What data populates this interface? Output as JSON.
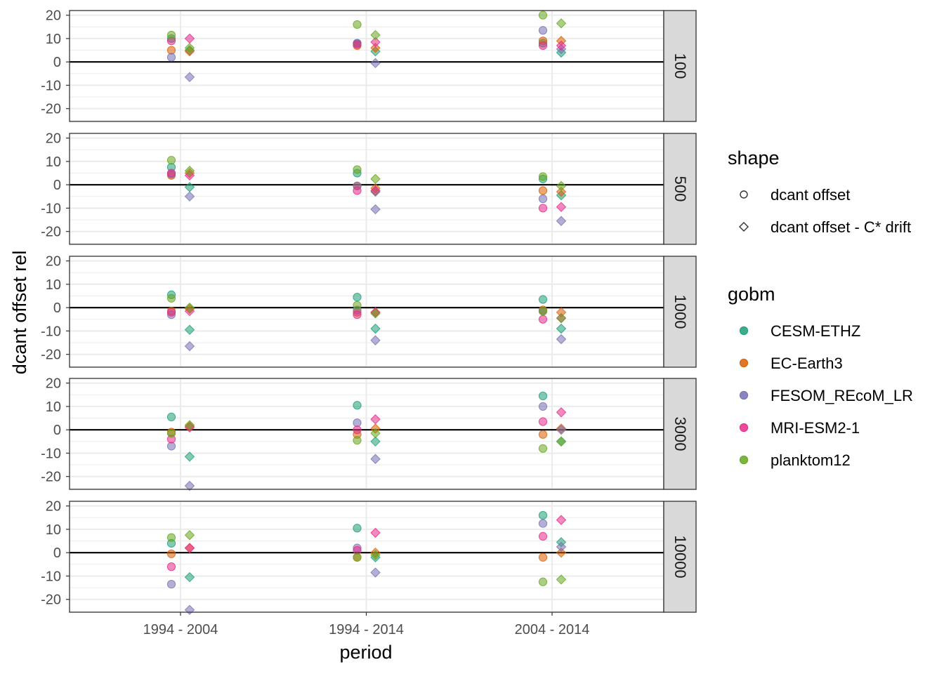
{
  "chart_data": {
    "type": "scatter",
    "facet_by": "depth",
    "facets": [
      "100",
      "500",
      "1000",
      "3000",
      "10000"
    ],
    "categories": [
      "1994 - 2004",
      "1994 - 2014",
      "2004 - 2014"
    ],
    "xlabel": "period",
    "ylabel": "dcant offset rel",
    "ylim": [
      -25.5,
      22
    ],
    "yticks": [
      20,
      10,
      0,
      -10,
      -20
    ],
    "ytick_labels": [
      "20",
      "10",
      "0",
      "-10",
      "-20"
    ],
    "hline": 0,
    "grid": true,
    "legend_placement": "right",
    "shape_legend": {
      "title": "shape",
      "items": [
        {
          "key": "circle",
          "label": "dcant offset"
        },
        {
          "key": "diamond",
          "label": "dcant offset - C* drift"
        }
      ]
    },
    "color_legend": {
      "title": "gobm",
      "items": [
        {
          "key": "CESM-ETHZ",
          "label": "CESM-ETHZ",
          "color": "#1b9e77"
        },
        {
          "key": "EC-Earth3",
          "label": "EC-Earth3",
          "color": "#d95f02"
        },
        {
          "key": "FESOM_REcoM_LR",
          "label": "FESOM_REcoM_LR",
          "color": "#7570b3"
        },
        {
          "key": "MRI-ESM2-1",
          "label": "MRI-ESM2-1",
          "color": "#e7298a"
        },
        {
          "key": "planktom12",
          "label": "planktom12",
          "color": "#66a61e"
        }
      ]
    },
    "series": [
      {
        "facet": "100",
        "shape": "circle",
        "gobm": "CESM-ETHZ",
        "values": [
          10,
          8,
          8
        ]
      },
      {
        "facet": "100",
        "shape": "circle",
        "gobm": "EC-Earth3",
        "values": [
          5,
          7,
          9
        ]
      },
      {
        "facet": "100",
        "shape": "circle",
        "gobm": "FESOM_REcoM_LR",
        "values": [
          2,
          8,
          13.5
        ]
      },
      {
        "facet": "100",
        "shape": "circle",
        "gobm": "MRI-ESM2-1",
        "values": [
          9,
          7.5,
          7
        ]
      },
      {
        "facet": "100",
        "shape": "circle",
        "gobm": "planktom12",
        "values": [
          11.5,
          16,
          20
        ]
      },
      {
        "facet": "100",
        "shape": "diamond",
        "gobm": "CESM-ETHZ",
        "values": [
          5,
          4.5,
          4
        ]
      },
      {
        "facet": "100",
        "shape": "diamond",
        "gobm": "EC-Earth3",
        "values": [
          4.5,
          6,
          9
        ]
      },
      {
        "facet": "100",
        "shape": "diamond",
        "gobm": "FESOM_REcoM_LR",
        "values": [
          -6.5,
          -0.5,
          5.5
        ]
      },
      {
        "facet": "100",
        "shape": "diamond",
        "gobm": "MRI-ESM2-1",
        "values": [
          10,
          8.5,
          7
        ]
      },
      {
        "facet": "100",
        "shape": "diamond",
        "gobm": "planktom12",
        "values": [
          6,
          11.5,
          16.5
        ]
      },
      {
        "facet": "500",
        "shape": "circle",
        "gobm": "CESM-ETHZ",
        "values": [
          7.5,
          5,
          2.5
        ]
      },
      {
        "facet": "500",
        "shape": "circle",
        "gobm": "EC-Earth3",
        "values": [
          4,
          -0.5,
          -2.5
        ]
      },
      {
        "facet": "500",
        "shape": "circle",
        "gobm": "FESOM_REcoM_LR",
        "values": [
          4.5,
          -0.5,
          -6
        ]
      },
      {
        "facet": "500",
        "shape": "circle",
        "gobm": "MRI-ESM2-1",
        "values": [
          5,
          -2.5,
          -10
        ]
      },
      {
        "facet": "500",
        "shape": "circle",
        "gobm": "planktom12",
        "values": [
          10.5,
          6.5,
          3.5
        ]
      },
      {
        "facet": "500",
        "shape": "diamond",
        "gobm": "CESM-ETHZ",
        "values": [
          -1,
          -3,
          -4.5
        ]
      },
      {
        "facet": "500",
        "shape": "diamond",
        "gobm": "EC-Earth3",
        "values": [
          5,
          -1.5,
          -3
        ]
      },
      {
        "facet": "500",
        "shape": "diamond",
        "gobm": "FESOM_REcoM_LR",
        "values": [
          -5,
          -10.5,
          -15.5
        ]
      },
      {
        "facet": "500",
        "shape": "diamond",
        "gobm": "MRI-ESM2-1",
        "values": [
          4,
          -2.5,
          -9.5
        ]
      },
      {
        "facet": "500",
        "shape": "diamond",
        "gobm": "planktom12",
        "values": [
          6,
          2.5,
          -0.5
        ]
      },
      {
        "facet": "1000",
        "shape": "circle",
        "gobm": "CESM-ETHZ",
        "values": [
          5.5,
          4.5,
          3.5
        ]
      },
      {
        "facet": "1000",
        "shape": "circle",
        "gobm": "EC-Earth3",
        "values": [
          -1.5,
          -2,
          -1
        ]
      },
      {
        "facet": "1000",
        "shape": "circle",
        "gobm": "FESOM_REcoM_LR",
        "values": [
          -3,
          -1,
          -1.5
        ]
      },
      {
        "facet": "1000",
        "shape": "circle",
        "gobm": "MRI-ESM2-1",
        "values": [
          -2,
          -3,
          -5
        ]
      },
      {
        "facet": "1000",
        "shape": "circle",
        "gobm": "planktom12",
        "values": [
          4,
          1,
          -1.5
        ]
      },
      {
        "facet": "1000",
        "shape": "diamond",
        "gobm": "CESM-ETHZ",
        "values": [
          -9.5,
          -9,
          -9
        ]
      },
      {
        "facet": "1000",
        "shape": "diamond",
        "gobm": "EC-Earth3",
        "values": [
          -0.5,
          -2,
          -2
        ]
      },
      {
        "facet": "1000",
        "shape": "diamond",
        "gobm": "FESOM_REcoM_LR",
        "values": [
          -16.5,
          -14,
          -13.5
        ]
      },
      {
        "facet": "1000",
        "shape": "diamond",
        "gobm": "MRI-ESM2-1",
        "values": [
          -1.5,
          -2,
          -4.5
        ]
      },
      {
        "facet": "1000",
        "shape": "diamond",
        "gobm": "planktom12",
        "values": [
          0,
          -2.5,
          -4.5
        ]
      },
      {
        "facet": "3000",
        "shape": "circle",
        "gobm": "CESM-ETHZ",
        "values": [
          5.5,
          10.5,
          14.5
        ]
      },
      {
        "facet": "3000",
        "shape": "circle",
        "gobm": "EC-Earth3",
        "values": [
          -1,
          -2,
          -2
        ]
      },
      {
        "facet": "3000",
        "shape": "circle",
        "gobm": "FESOM_REcoM_LR",
        "values": [
          -7,
          3,
          10
        ]
      },
      {
        "facet": "3000",
        "shape": "circle",
        "gobm": "MRI-ESM2-1",
        "values": [
          -4,
          0,
          3.5
        ]
      },
      {
        "facet": "3000",
        "shape": "circle",
        "gobm": "planktom12",
        "values": [
          -1.5,
          -4.5,
          -8
        ]
      },
      {
        "facet": "3000",
        "shape": "diamond",
        "gobm": "CESM-ETHZ",
        "values": [
          -11.5,
          -5,
          -5
        ]
      },
      {
        "facet": "3000",
        "shape": "diamond",
        "gobm": "EC-Earth3",
        "values": [
          1.5,
          0.5,
          0.5
        ]
      },
      {
        "facet": "3000",
        "shape": "diamond",
        "gobm": "FESOM_REcoM_LR",
        "values": [
          -24,
          -12.5,
          0
        ]
      },
      {
        "facet": "3000",
        "shape": "diamond",
        "gobm": "MRI-ESM2-1",
        "values": [
          1,
          4.5,
          7.5
        ]
      },
      {
        "facet": "3000",
        "shape": "diamond",
        "gobm": "planktom12",
        "values": [
          2,
          -1.5,
          -5
        ]
      },
      {
        "facet": "10000",
        "shape": "circle",
        "gobm": "CESM-ETHZ",
        "values": [
          4,
          10.5,
          16
        ]
      },
      {
        "facet": "10000",
        "shape": "circle",
        "gobm": "EC-Earth3",
        "values": [
          -0.5,
          -2,
          -2
        ]
      },
      {
        "facet": "10000",
        "shape": "circle",
        "gobm": "FESOM_REcoM_LR",
        "values": [
          -13.5,
          2,
          12.5
        ]
      },
      {
        "facet": "10000",
        "shape": "circle",
        "gobm": "MRI-ESM2-1",
        "values": [
          -6,
          1,
          7
        ]
      },
      {
        "facet": "10000",
        "shape": "circle",
        "gobm": "planktom12",
        "values": [
          6.5,
          -2,
          -12.5
        ]
      },
      {
        "facet": "10000",
        "shape": "diamond",
        "gobm": "CESM-ETHZ",
        "values": [
          -10.5,
          -2,
          4.5
        ]
      },
      {
        "facet": "10000",
        "shape": "diamond",
        "gobm": "EC-Earth3",
        "values": [
          2,
          0,
          0
        ]
      },
      {
        "facet": "10000",
        "shape": "diamond",
        "gobm": "FESOM_REcoM_LR",
        "values": [
          -24.5,
          -8.5,
          2.5
        ]
      },
      {
        "facet": "10000",
        "shape": "diamond",
        "gobm": "MRI-ESM2-1",
        "values": [
          2,
          8.5,
          14
        ]
      },
      {
        "facet": "10000",
        "shape": "diamond",
        "gobm": "planktom12",
        "values": [
          7.5,
          -1,
          -11.5
        ]
      }
    ]
  }
}
